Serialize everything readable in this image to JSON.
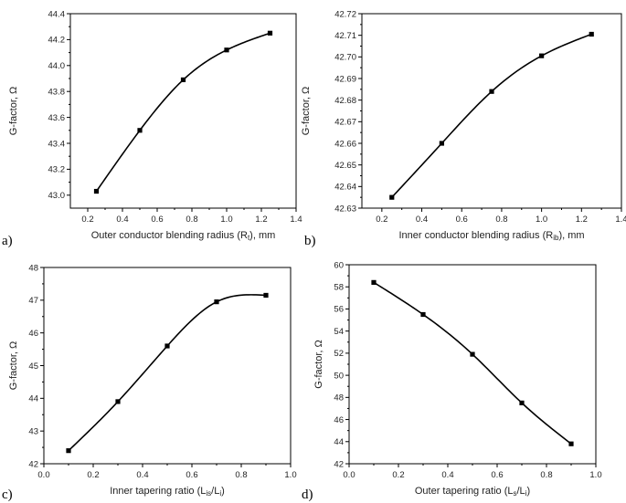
{
  "chart_data": [
    {
      "type": "scatter",
      "panel_label": "a)",
      "xlabel_main": "Outer conductor blending radius (R",
      "xlabel_sub": "t",
      "xlabel_end": "), mm",
      "ylabel": "G-factor, Ω",
      "xlim": [
        0.1,
        1.4
      ],
      "ylim": [
        42.9,
        44.4
      ],
      "xticks": [
        0.2,
        0.4,
        0.6,
        0.8,
        1.0,
        1.2,
        1.4
      ],
      "xtick_labels": [
        "0.2",
        "0.4",
        "0.6",
        "0.8",
        "1.0",
        "1.2",
        "1.4"
      ],
      "yticks": [
        43.0,
        43.2,
        43.4,
        43.6,
        43.8,
        44.0,
        44.2,
        44.4
      ],
      "ytick_labels": [
        "43.0",
        "43.2",
        "43.4",
        "43.6",
        "43.8",
        "44.0",
        "44.2",
        "44.4"
      ],
      "x": [
        0.25,
        0.5,
        0.75,
        1.0,
        1.25
      ],
      "y": [
        43.03,
        43.5,
        43.89,
        44.12,
        44.25
      ],
      "fit_line": true
    },
    {
      "type": "scatter",
      "panel_label": "b)",
      "xlabel_main": "Inner conductor blending radius (R",
      "xlabel_sub": "ib",
      "xlabel_end": "), mm",
      "ylabel": "G-factor, Ω",
      "xlim": [
        0.1,
        1.4
      ],
      "ylim": [
        42.63,
        42.72
      ],
      "xticks": [
        0.2,
        0.4,
        0.6,
        0.8,
        1.0,
        1.2,
        1.4
      ],
      "xtick_labels": [
        "0.2",
        "0.4",
        "0.6",
        "0.8",
        "1.0",
        "1.2",
        "1.4"
      ],
      "yticks": [
        42.63,
        42.64,
        42.65,
        42.66,
        42.67,
        42.68,
        42.69,
        42.7,
        42.71,
        42.72
      ],
      "ytick_labels": [
        "42.63",
        "42.64",
        "42.65",
        "42.66",
        "42.67",
        "42.68",
        "42.69",
        "42.70",
        "42.71",
        "42.72"
      ],
      "x": [
        0.25,
        0.5,
        0.75,
        1.0,
        1.25
      ],
      "y": [
        42.635,
        42.66,
        42.684,
        42.7005,
        42.7105
      ],
      "fit_line": true
    },
    {
      "type": "scatter",
      "panel_label": "c)",
      "xlabel_main": "Inner tapering ratio (L",
      "xlabel_sub": "is",
      "xlabel_mid": "/L",
      "xlabel_sub2": "i",
      "xlabel_end": ")",
      "ylabel": "G-factor, Ω",
      "xlim": [
        0.0,
        1.0
      ],
      "ylim": [
        42,
        48
      ],
      "xticks": [
        0.0,
        0.2,
        0.4,
        0.6,
        0.8,
        1.0
      ],
      "xtick_labels": [
        "0.0",
        "0.2",
        "0.4",
        "0.6",
        "0.8",
        "1.0"
      ],
      "yticks": [
        42,
        43,
        44,
        45,
        46,
        47,
        48
      ],
      "ytick_labels": [
        "42",
        "43",
        "44",
        "45",
        "46",
        "47",
        "48"
      ],
      "x": [
        0.1,
        0.3,
        0.5,
        0.7,
        0.9
      ],
      "y": [
        42.4,
        43.9,
        45.6,
        46.95,
        47.15
      ],
      "fit_line": true
    },
    {
      "type": "scatter",
      "panel_label": "d)",
      "xlabel_main": "Outer tapering ratio (L",
      "xlabel_sub": "s",
      "xlabel_mid": "/L",
      "xlabel_sub2": "i",
      "xlabel_end": ")",
      "ylabel": "G-factor, Ω",
      "xlim": [
        0.0,
        1.0
      ],
      "ylim": [
        42,
        60
      ],
      "xticks": [
        0.0,
        0.2,
        0.4,
        0.6,
        0.8,
        1.0
      ],
      "xtick_labels": [
        "0.0",
        "0.2",
        "0.4",
        "0.6",
        "0.8",
        "1.0"
      ],
      "yticks": [
        42,
        44,
        46,
        48,
        50,
        52,
        54,
        56,
        58,
        60
      ],
      "ytick_labels": [
        "42",
        "44",
        "46",
        "48",
        "50",
        "52",
        "54",
        "56",
        "58",
        "60"
      ],
      "x": [
        0.1,
        0.3,
        0.5,
        0.7,
        0.9
      ],
      "y": [
        58.4,
        55.5,
        51.9,
        47.5,
        43.8
      ],
      "fit_line": true
    }
  ]
}
